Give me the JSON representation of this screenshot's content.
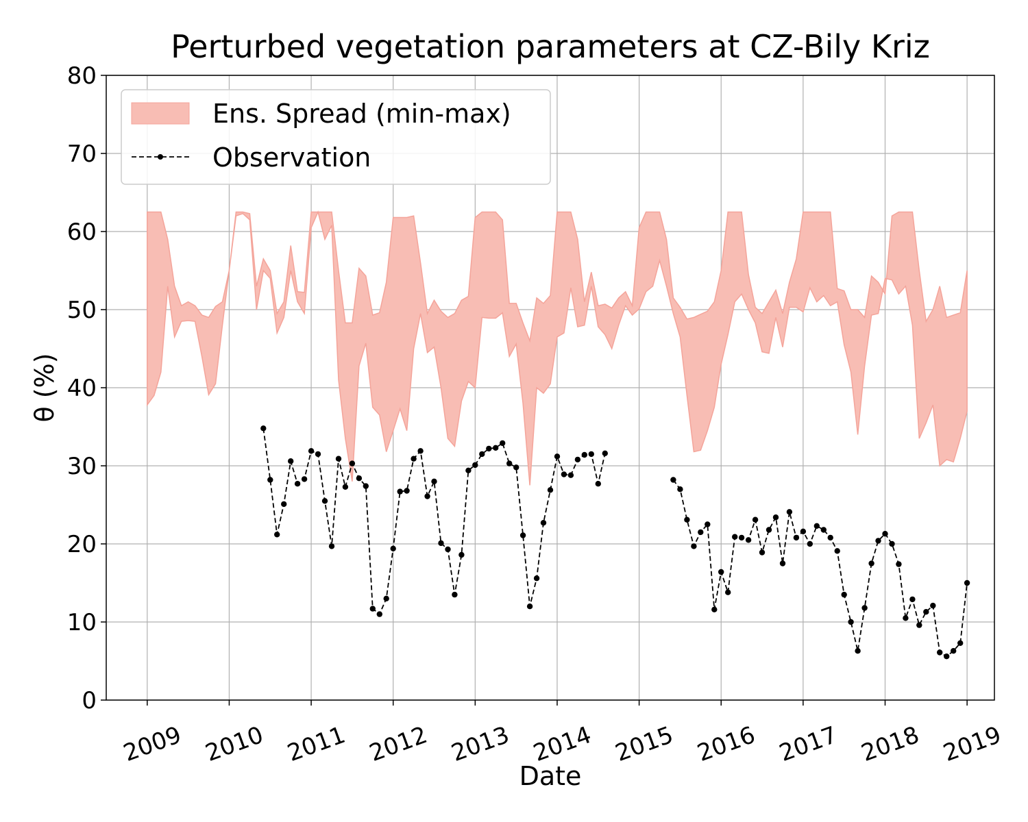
{
  "chart_data": {
    "type": "line",
    "title": "Perturbed vegetation parameters at CZ-Bily Kriz",
    "xlabel": "Date",
    "ylabel": "θ  (%)",
    "ylim": [
      0,
      80
    ],
    "xlim": [
      "2008-07",
      "2019-05"
    ],
    "yticks": [
      "0",
      "10",
      "20",
      "30",
      "40",
      "50",
      "60",
      "70",
      "80"
    ],
    "xticks": [
      "2009",
      "2010",
      "2011",
      "2012",
      "2013",
      "2014",
      "2015",
      "2016",
      "2017",
      "2018",
      "2019"
    ],
    "grid": true,
    "legend": {
      "placement": "top-left",
      "entries": [
        "Ens. Spread (min-max)",
        "Observation"
      ]
    },
    "colors": {
      "spread_fill": "#f8bdb4",
      "spread_edge": "#f4a49a",
      "observation": "#000000",
      "grid": "#b0b0b0"
    },
    "series": [
      {
        "name": "Ens. Spread (min-max)",
        "kind": "band",
        "x": [
          "2009-01",
          "2009-02",
          "2009-03",
          "2009-04",
          "2009-05",
          "2009-06",
          "2009-07",
          "2009-08",
          "2009-09",
          "2009-10",
          "2009-11",
          "2009-12",
          "2010-01",
          "2010-02",
          "2010-03",
          "2010-04",
          "2010-05",
          "2010-06",
          "2010-07",
          "2010-08",
          "2010-09",
          "2010-10",
          "2010-11",
          "2010-12",
          "2011-01",
          "2011-02",
          "2011-03",
          "2011-04",
          "2011-05",
          "2011-06",
          "2011-07",
          "2011-08",
          "2011-09",
          "2011-10",
          "2011-11",
          "2011-12",
          "2012-01",
          "2012-02",
          "2012-03",
          "2012-04",
          "2012-05",
          "2012-06",
          "2012-07",
          "2012-08",
          "2012-09",
          "2012-10",
          "2012-11",
          "2012-12",
          "2013-01",
          "2013-02",
          "2013-03",
          "2013-04",
          "2013-05",
          "2013-06",
          "2013-07",
          "2013-08",
          "2013-09",
          "2013-10",
          "2013-11",
          "2013-12",
          "2014-01",
          "2014-02",
          "2014-03",
          "2014-04",
          "2014-05",
          "2014-06",
          "2014-07",
          "2014-08",
          "2014-09",
          "2014-10",
          "2014-11",
          "2014-12",
          "2015-01",
          "2015-02",
          "2015-03",
          "2015-04",
          "2015-05",
          "2015-06",
          "2015-07",
          "2015-08",
          "2015-09",
          "2015-10",
          "2015-11",
          "2015-12",
          "2016-01",
          "2016-02",
          "2016-03",
          "2016-04",
          "2016-05",
          "2016-06",
          "2016-07",
          "2016-08",
          "2016-09",
          "2016-10",
          "2016-11",
          "2016-12",
          "2017-01",
          "2017-02",
          "2017-03",
          "2017-04",
          "2017-05",
          "2017-06",
          "2017-07",
          "2017-08",
          "2017-09",
          "2017-10",
          "2017-11",
          "2017-12",
          "2018-01",
          "2018-02",
          "2018-03",
          "2018-04",
          "2018-05",
          "2018-06",
          "2018-07",
          "2018-08",
          "2018-09",
          "2018-10",
          "2018-11",
          "2018-12",
          "2019-01"
        ],
        "max": [
          62.5,
          62.5,
          62.5,
          59.0,
          53.0,
          50.5,
          51.0,
          50.5,
          49.3,
          49.0,
          50.4,
          51.0,
          55.0,
          62.5,
          62.5,
          62.3,
          53.0,
          56.5,
          55.0,
          49.5,
          51.0,
          58.2,
          52.3,
          52.2,
          62.5,
          62.5,
          62.5,
          62.5,
          55.0,
          48.3,
          48.3,
          55.3,
          54.3,
          49.3,
          49.6,
          53.5,
          61.8,
          61.8,
          61.8,
          62.0,
          56.0,
          49.5,
          51.2,
          49.8,
          49.0,
          49.5,
          51.2,
          51.7,
          61.8,
          62.5,
          62.5,
          62.5,
          61.5,
          50.8,
          50.8,
          48.3,
          46.0,
          51.5,
          50.8,
          51.8,
          62.5,
          62.5,
          62.5,
          59.0,
          51.0,
          54.8,
          50.5,
          50.7,
          50.2,
          51.5,
          52.3,
          50.5,
          60.5,
          62.5,
          62.5,
          62.5,
          59.0,
          51.5,
          50.3,
          48.8,
          49.0,
          49.4,
          49.8,
          51.0,
          55.0,
          62.5,
          62.5,
          62.5,
          54.5,
          50.3,
          49.5,
          51.0,
          52.5,
          49.5,
          53.5,
          56.5,
          62.5,
          62.5,
          62.5,
          62.5,
          62.5,
          52.7,
          52.4,
          50.0,
          50.0,
          49.0,
          54.3,
          53.5,
          52.0,
          62.0,
          62.5,
          62.5,
          62.5,
          55.0,
          48.5,
          50.0,
          53.0,
          49.0,
          49.3,
          49.6,
          55.0,
          62.5
        ],
        "min": [
          37.8,
          39.0,
          42.0,
          53.0,
          46.5,
          48.5,
          48.6,
          48.5,
          44.0,
          39.1,
          40.5,
          48.0,
          55.0,
          62.0,
          62.3,
          61.5,
          50.0,
          55.0,
          54.0,
          47.0,
          49.0,
          55.0,
          51.0,
          49.5,
          60.5,
          62.5,
          59.0,
          60.8,
          41.0,
          33.5,
          28.0,
          42.8,
          45.7,
          37.5,
          36.5,
          31.8,
          34.5,
          37.3,
          34.5,
          45.0,
          49.5,
          44.5,
          45.2,
          40.0,
          33.5,
          32.5,
          38.3,
          40.8,
          40.0,
          49.0,
          48.9,
          48.9,
          49.6,
          44.0,
          45.6,
          38.0,
          27.5,
          40.0,
          39.3,
          40.5,
          46.5,
          47.0,
          52.8,
          47.8,
          48.0,
          53.0,
          47.8,
          46.8,
          45.0,
          48.0,
          50.5,
          49.3,
          50.1,
          52.3,
          53.0,
          56.3,
          53.0,
          49.5,
          46.5,
          39.0,
          31.8,
          32.0,
          34.5,
          37.5,
          43.0,
          46.8,
          51.0,
          52.0,
          50.0,
          48.3,
          44.6,
          44.4,
          49.0,
          45.2,
          50.3,
          50.3,
          49.7,
          52.8,
          51.0,
          51.8,
          50.5,
          51.0,
          45.5,
          42.0,
          34.0,
          42.8,
          49.3,
          49.5,
          54.0,
          53.8,
          52.0,
          53.0,
          48.0,
          33.5,
          35.5,
          37.8,
          30.0,
          30.8,
          30.5,
          33.5,
          37.0
        ]
      },
      {
        "name": "Observation",
        "kind": "line-markers",
        "segments": [
          {
            "x": [
              "2010-06",
              "2010-07",
              "2010-08",
              "2010-09",
              "2010-10",
              "2010-11",
              "2010-12",
              "2011-01",
              "2011-02",
              "2011-03",
              "2011-04",
              "2011-05",
              "2011-06",
              "2011-07",
              "2011-08",
              "2011-09",
              "2011-10",
              "2011-11",
              "2011-12",
              "2012-01",
              "2012-02",
              "2012-03",
              "2012-04",
              "2012-05",
              "2012-06",
              "2012-07",
              "2012-08",
              "2012-09",
              "2012-10",
              "2012-11",
              "2012-12",
              "2013-01",
              "2013-02",
              "2013-03",
              "2013-04",
              "2013-05",
              "2013-06",
              "2013-07",
              "2013-08",
              "2013-09",
              "2013-10",
              "2013-11",
              "2013-12",
              "2014-01",
              "2014-02",
              "2014-03",
              "2014-04",
              "2014-05",
              "2014-06",
              "2014-07",
              "2014-08"
            ],
            "y": [
              34.8,
              28.2,
              21.2,
              25.1,
              30.6,
              27.7,
              28.3,
              31.9,
              31.5,
              25.5,
              19.7,
              30.9,
              27.3,
              30.3,
              28.4,
              27.4,
              11.7,
              11.0,
              13.0,
              19.4,
              26.7,
              26.8,
              30.9,
              31.9,
              26.1,
              28.0,
              20.1,
              19.3,
              13.5,
              18.6,
              29.4,
              30.1,
              31.5,
              32.2,
              32.3,
              32.9,
              30.3,
              29.8,
              21.1,
              12.0,
              15.6,
              22.7,
              26.9,
              31.2,
              28.9,
              28.8,
              30.8,
              31.4,
              31.5,
              27.7,
              31.6
            ]
          },
          {
            "x": [
              "2015-06",
              "2015-07",
              "2015-08",
              "2015-09",
              "2015-10",
              "2015-11",
              "2015-12",
              "2016-01",
              "2016-02",
              "2016-03",
              "2016-04",
              "2016-05",
              "2016-06",
              "2016-07",
              "2016-08",
              "2016-09",
              "2016-10",
              "2016-11",
              "2016-12",
              "2017-01",
              "2017-02",
              "2017-03",
              "2017-04",
              "2017-05",
              "2017-06",
              "2017-07",
              "2017-08",
              "2017-09",
              "2017-10",
              "2017-11",
              "2017-12",
              "2018-01",
              "2018-02",
              "2018-03",
              "2018-04",
              "2018-05",
              "2018-06",
              "2018-07",
              "2018-08",
              "2018-09",
              "2018-10",
              "2018-11",
              "2018-12",
              "2019-01"
            ],
            "y": [
              28.2,
              27.0,
              23.1,
              19.7,
              21.5,
              22.5,
              11.6,
              16.4,
              13.8,
              20.9,
              20.8,
              20.5,
              23.1,
              18.9,
              21.8,
              23.4,
              17.5,
              24.1,
              20.8,
              21.6,
              20.0,
              22.3,
              21.8,
              20.8,
              19.1,
              13.5,
              10.0,
              6.3,
              11.8,
              17.5,
              20.4,
              21.3,
              20.0,
              17.4,
              10.5,
              12.9,
              9.6,
              11.3,
              12.1,
              6.1,
              5.6,
              6.3,
              7.3,
              15.0
            ]
          }
        ]
      }
    ]
  }
}
